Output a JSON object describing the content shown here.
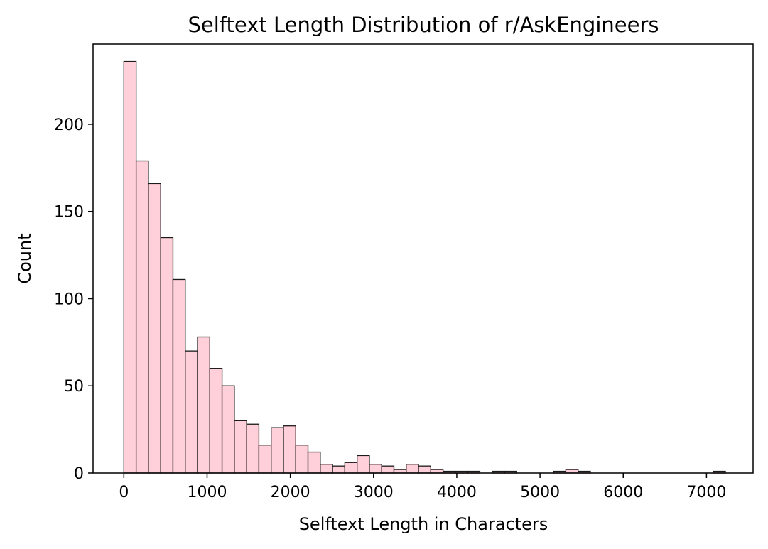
{
  "chart_data": {
    "type": "bar",
    "title": "Selftext Length Distribution of r/AskEngineers",
    "xlabel": "Selftext Length in Characters",
    "ylabel": "Count",
    "xlim": [
      -370,
      7560
    ],
    "ylim": [
      0,
      246
    ],
    "xticks": [
      0,
      1000,
      2000,
      3000,
      4000,
      5000,
      6000,
      7000
    ],
    "xtick_labels": [
      "0",
      "1000",
      "2000",
      "3000",
      "4000",
      "5000",
      "6000",
      "7000"
    ],
    "yticks": [
      0,
      50,
      100,
      150,
      200
    ],
    "ytick_labels": [
      "0",
      "50",
      "100",
      "150",
      "200"
    ],
    "bin_start": 0,
    "bin_width": 147.5,
    "values": [
      236,
      179,
      166,
      135,
      111,
      70,
      78,
      60,
      50,
      30,
      28,
      16,
      26,
      27,
      16,
      12,
      5,
      4,
      6,
      10,
      5,
      4,
      2,
      5,
      4,
      2,
      1,
      1,
      1,
      0,
      1,
      1,
      0,
      0,
      0,
      1,
      2,
      1,
      0,
      0,
      0,
      0,
      0,
      0,
      0,
      0,
      0,
      0,
      1
    ],
    "grid": false,
    "legend": "none"
  }
}
